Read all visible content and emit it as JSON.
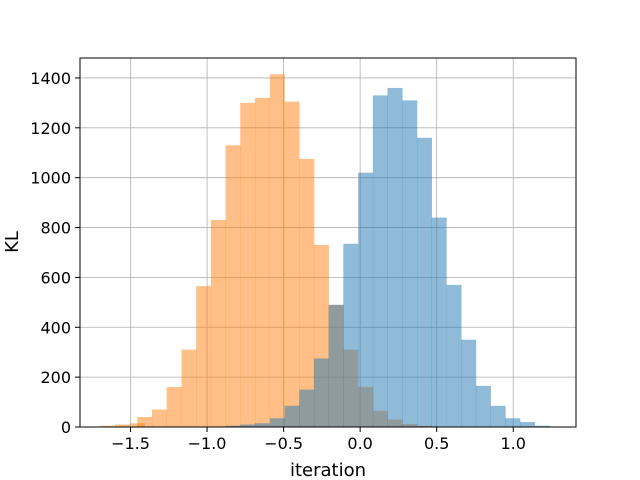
{
  "chart_data": {
    "type": "histogram",
    "xlabel": "iteration",
    "ylabel": "KL",
    "xlim": [
      -1.83,
      1.41
    ],
    "ylim": [
      0,
      1480
    ],
    "grid": true,
    "xticks": [
      -1.5,
      -1.0,
      -0.5,
      0.0,
      0.5,
      1.0
    ],
    "xtick_labels": [
      "−1.5",
      "−1.0",
      "−0.5",
      "0.0",
      "0.5",
      "1.0"
    ],
    "yticks": [
      0,
      200,
      400,
      600,
      800,
      1000,
      1200,
      1400
    ],
    "ytick_labels": [
      "0",
      "200",
      "400",
      "600",
      "800",
      "1000",
      "1200",
      "1400"
    ],
    "overlap_color": "#c3a077",
    "series": [
      {
        "color": "#ff7f0e",
        "alpha": 0.5,
        "bin_width": 0.0962,
        "bins": [
          {
            "x0": -1.697,
            "v": 5
          },
          {
            "x0": -1.601,
            "v": 10
          },
          {
            "x0": -1.504,
            "v": 15
          },
          {
            "x0": -1.456,
            "v": 40
          },
          {
            "x0": -1.36,
            "v": 70
          },
          {
            "x0": -1.264,
            "v": 160
          },
          {
            "x0": -1.167,
            "v": 310
          },
          {
            "x0": -1.071,
            "v": 565
          },
          {
            "x0": -0.975,
            "v": 830
          },
          {
            "x0": -0.879,
            "v": 1130
          },
          {
            "x0": -0.783,
            "v": 1300
          },
          {
            "x0": -0.687,
            "v": 1320
          },
          {
            "x0": -0.59,
            "v": 1415
          },
          {
            "x0": -0.494,
            "v": 1305
          },
          {
            "x0": -0.398,
            "v": 1075
          },
          {
            "x0": -0.302,
            "v": 730
          },
          {
            "x0": -0.206,
            "v": 490
          },
          {
            "x0": -0.11,
            "v": 310
          },
          {
            "x0": -0.013,
            "v": 160
          },
          {
            "x0": 0.083,
            "v": 65
          },
          {
            "x0": 0.179,
            "v": 30
          },
          {
            "x0": 0.275,
            "v": 12
          },
          {
            "x0": 0.371,
            "v": 5
          }
        ]
      },
      {
        "color": "#1f77b4",
        "alpha": 0.5,
        "bin_width": 0.0962,
        "bins": [
          {
            "x0": -0.879,
            "v": 5
          },
          {
            "x0": -0.783,
            "v": 10
          },
          {
            "x0": -0.687,
            "v": 15
          },
          {
            "x0": -0.59,
            "v": 35
          },
          {
            "x0": -0.494,
            "v": 85
          },
          {
            "x0": -0.398,
            "v": 150
          },
          {
            "x0": -0.302,
            "v": 275
          },
          {
            "x0": -0.206,
            "v": 490
          },
          {
            "x0": -0.11,
            "v": 735
          },
          {
            "x0": -0.013,
            "v": 1020
          },
          {
            "x0": 0.083,
            "v": 1330
          },
          {
            "x0": 0.179,
            "v": 1360
          },
          {
            "x0": 0.275,
            "v": 1310
          },
          {
            "x0": 0.371,
            "v": 1160
          },
          {
            "x0": 0.467,
            "v": 840
          },
          {
            "x0": 0.564,
            "v": 570
          },
          {
            "x0": 0.66,
            "v": 350
          },
          {
            "x0": 0.756,
            "v": 165
          },
          {
            "x0": 0.852,
            "v": 85
          },
          {
            "x0": 0.948,
            "v": 35
          },
          {
            "x0": 1.044,
            "v": 20
          },
          {
            "x0": 1.141,
            "v": 5
          }
        ]
      }
    ]
  }
}
